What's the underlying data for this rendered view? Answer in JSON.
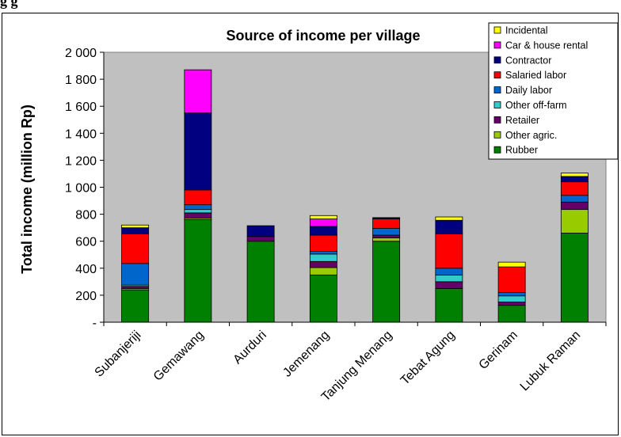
{
  "caption_fragment": "g                                      g",
  "chart_data": {
    "type": "bar",
    "stacked": true,
    "title": "Source of income per village",
    "xlabel": "",
    "ylabel": "Total income (million Rp)",
    "ylim": [
      0,
      2000
    ],
    "yticks": [
      0,
      200,
      400,
      600,
      800,
      1000,
      1200,
      1400,
      1600,
      1800,
      2000
    ],
    "ytick_labels": [
      "-",
      "200",
      "400",
      "600",
      "800",
      "1 000",
      "1 200",
      "1 400",
      "1 600",
      "1 800",
      "2 000"
    ],
    "grid": false,
    "legend_position": "top-right",
    "categories": [
      "Subanjeriji",
      "Gemawang",
      "Aurduri",
      "Jemenang",
      "Tanjung Menang",
      "Tebat Agung",
      "Gerinam",
      "Lubuk Raman"
    ],
    "series": [
      {
        "name": "Rubber",
        "color": "#008000",
        "values": [
          240,
          760,
          600,
          350,
          600,
          250,
          125,
          660
        ]
      },
      {
        "name": "Other agric.",
        "color": "#99cc00",
        "values": [
          10,
          10,
          0,
          55,
          25,
          0,
          0,
          175
        ]
      },
      {
        "name": "Retailer",
        "color": "#660066",
        "values": [
          15,
          40,
          35,
          45,
          20,
          50,
          25,
          55
        ]
      },
      {
        "name": "Other off-farm",
        "color": "#33cccc",
        "values": [
          10,
          25,
          0,
          55,
          0,
          50,
          45,
          0
        ]
      },
      {
        "name": "Daily labor",
        "color": "#0066cc",
        "values": [
          160,
          35,
          0,
          20,
          50,
          50,
          25,
          50
        ]
      },
      {
        "name": "Salaried labor",
        "color": "#ff0000",
        "values": [
          220,
          110,
          0,
          120,
          70,
          255,
          190,
          100
        ]
      },
      {
        "name": "Contractor",
        "color": "#000080",
        "values": [
          45,
          570,
          80,
          65,
          10,
          100,
          0,
          40
        ]
      },
      {
        "name": "Car & house rental",
        "color": "#ff00ff",
        "values": [
          0,
          320,
          0,
          55,
          0,
          0,
          0,
          0
        ]
      },
      {
        "name": "Incidental",
        "color": "#ffff00",
        "values": [
          20,
          0,
          0,
          25,
          0,
          25,
          35,
          25
        ]
      }
    ]
  }
}
